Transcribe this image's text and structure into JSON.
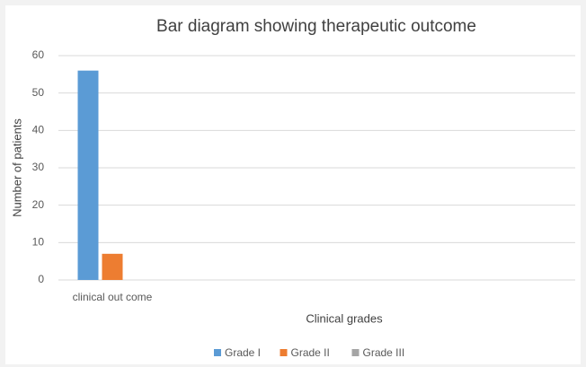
{
  "chart_data": {
    "type": "bar",
    "title": "Bar diagram showing therapeutic outcome",
    "x_label": "Clinical grades",
    "y_label": "Number of patients",
    "categories": [
      "clinical out come"
    ],
    "series": [
      {
        "name": "Grade I",
        "color": "#5b9bd5",
        "values": [
          56
        ]
      },
      {
        "name": "Grade II",
        "color": "#ed7d31",
        "values": [
          7
        ]
      },
      {
        "name": "Grade III",
        "color": "#a5a5a5",
        "values": [
          0
        ]
      }
    ],
    "ylim": [
      0,
      60
    ],
    "yticks": [
      0,
      10,
      20,
      30,
      40,
      50,
      60
    ],
    "grid": true,
    "legend": "bottom"
  }
}
